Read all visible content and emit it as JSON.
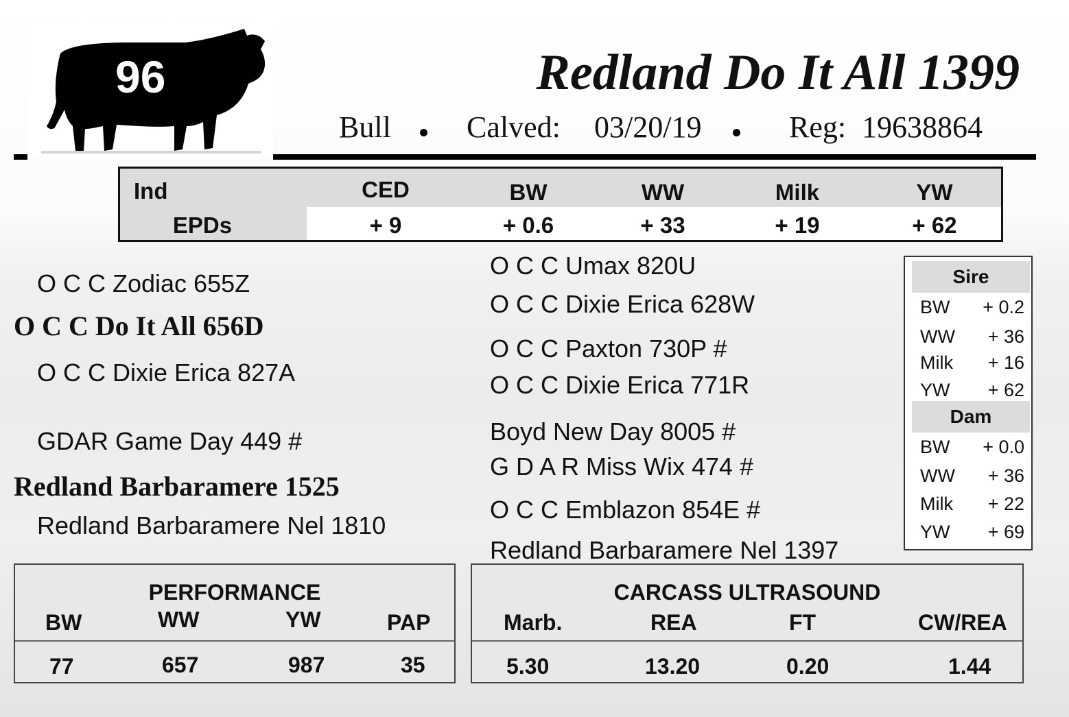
{
  "lot_number": "96",
  "animal": {
    "name": "Redland Do It All 1399",
    "sex": "Bull",
    "calved_label": "Calved:",
    "calved_date": "03/20/19",
    "reg_label": "Reg:",
    "reg_number": "19638864"
  },
  "epds": {
    "row_label_1": "Ind",
    "row_label_2": "EPDs",
    "columns": [
      {
        "label": "CED",
        "value": "+ 9"
      },
      {
        "label": "BW",
        "value": "+ 0.6"
      },
      {
        "label": "WW",
        "value": "+ 33"
      },
      {
        "label": "Milk",
        "value": "+ 19"
      },
      {
        "label": "YW",
        "value": "+ 62"
      }
    ]
  },
  "pedigree": {
    "sire": "O C C Do It All 656D",
    "sire_sire": "O C C Zodiac 655Z",
    "sire_dam": "O C C Dixie Erica 827A",
    "dam": "Redland Barbaramere 1525",
    "dam_sire": "GDAR Game Day 449 #",
    "dam_dam": "Redland Barbaramere Nel 1810",
    "ancestors": [
      "O C C Umax 820U",
      "O C C Dixie Erica 628W",
      "O C C Paxton 730P #",
      "O C C Dixie Erica 771R",
      "Boyd New Day 8005 #",
      "G D A R Miss Wix 474 #",
      "O C C Emblazon 854E #",
      "Redland Barbaramere Nel 1397"
    ]
  },
  "parent_epds": {
    "sire": {
      "title": "Sire",
      "rows": [
        {
          "label": "BW",
          "value": "+ 0.2"
        },
        {
          "label": "WW",
          "value": "+ 36"
        },
        {
          "label": "Milk",
          "value": "+ 16"
        },
        {
          "label": "YW",
          "value": "+ 62"
        }
      ]
    },
    "dam": {
      "title": "Dam",
      "rows": [
        {
          "label": "BW",
          "value": "+ 0.0"
        },
        {
          "label": "WW",
          "value": "+ 36"
        },
        {
          "label": "Milk",
          "value": "+ 22"
        },
        {
          "label": "YW",
          "value": "+ 69"
        }
      ]
    }
  },
  "performance": {
    "title": "PERFORMANCE",
    "headers": [
      "BW",
      "WW",
      "YW",
      "PAP"
    ],
    "values": [
      "77",
      "657",
      "987",
      "35"
    ]
  },
  "carcass": {
    "title": "CARCASS ULTRASOUND",
    "headers": [
      "Marb.",
      "REA",
      "FT",
      "CW/REA"
    ],
    "values": [
      "5.30",
      "13.20",
      "0.20",
      "1.44"
    ]
  },
  "icons": {
    "logo": "black-bull-silhouette-icon"
  }
}
